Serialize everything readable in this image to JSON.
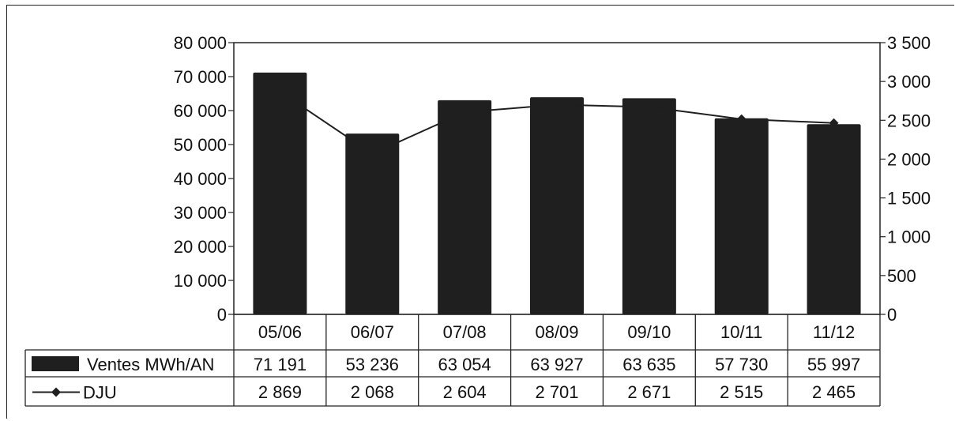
{
  "chart_data": {
    "type": "bar",
    "categories": [
      "05/06",
      "06/07",
      "07/08",
      "08/09",
      "09/10",
      "10/11",
      "11/12"
    ],
    "series": [
      {
        "name": "Ventes MWh/AN",
        "kind": "bar",
        "axis": "left",
        "values": [
          71191,
          53236,
          63054,
          63927,
          63635,
          57730,
          55997
        ],
        "labels": [
          "71 191",
          "53 236",
          "63 054",
          "63 927",
          "63 635",
          "57 730",
          "55 997"
        ],
        "color": "#1f1f1f"
      },
      {
        "name": "DJU",
        "kind": "line",
        "marker": "diamond",
        "axis": "right",
        "values": [
          2869,
          2068,
          2604,
          2701,
          2671,
          2515,
          2465
        ],
        "labels": [
          "2 869",
          "2 068",
          "2 604",
          "2 701",
          "2 671",
          "2 515",
          "2 465"
        ],
        "color": "#1f1f1f"
      }
    ],
    "title": "",
    "xlabel": "",
    "ylabel": "",
    "ylim": [
      0,
      80000
    ],
    "ylim_right": [
      0,
      3500
    ],
    "yticks_left": [
      "0",
      "10 000",
      "20 000",
      "30 000",
      "40 000",
      "50 000",
      "60 000",
      "70 000",
      "80 000"
    ],
    "yticks_right": [
      "0",
      "500",
      "1 000",
      "1 500",
      "2 000",
      "2 500",
      "3 000",
      "3 500"
    ],
    "grid": false,
    "legend": "data-table"
  }
}
